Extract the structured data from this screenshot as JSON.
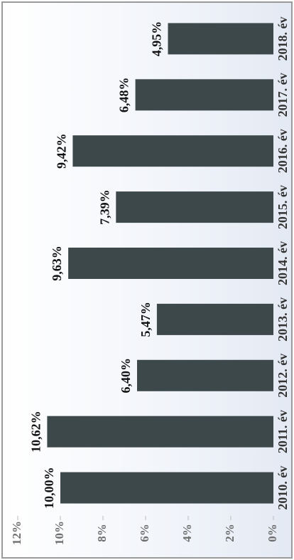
{
  "chart_data": {
    "type": "bar",
    "categories": [
      "2010. év",
      "2011. év",
      "2012. év",
      "2013. év",
      "2014. év",
      "2015. év",
      "2016. év",
      "2017. év",
      "2018. év"
    ],
    "values": [
      10.0,
      10.62,
      6.4,
      5.47,
      9.63,
      7.39,
      9.42,
      6.48,
      4.95
    ],
    "value_labels": [
      "10,00%",
      "10,62%",
      "6,40%",
      "5,47%",
      "9,63%",
      "7,39%",
      "9,42%",
      "6,48%",
      "4,95%"
    ],
    "color": "#3d484b",
    "ylim": [
      0,
      12
    ],
    "yticks": [
      {
        "value": 0,
        "label": "0%"
      },
      {
        "value": 2,
        "label": "2%"
      },
      {
        "value": 4,
        "label": "4%"
      },
      {
        "value": 6,
        "label": "6%"
      },
      {
        "value": 8,
        "label": "8%"
      },
      {
        "value": 10,
        "label": "10%"
      },
      {
        "value": 12,
        "label": "12%"
      }
    ]
  }
}
